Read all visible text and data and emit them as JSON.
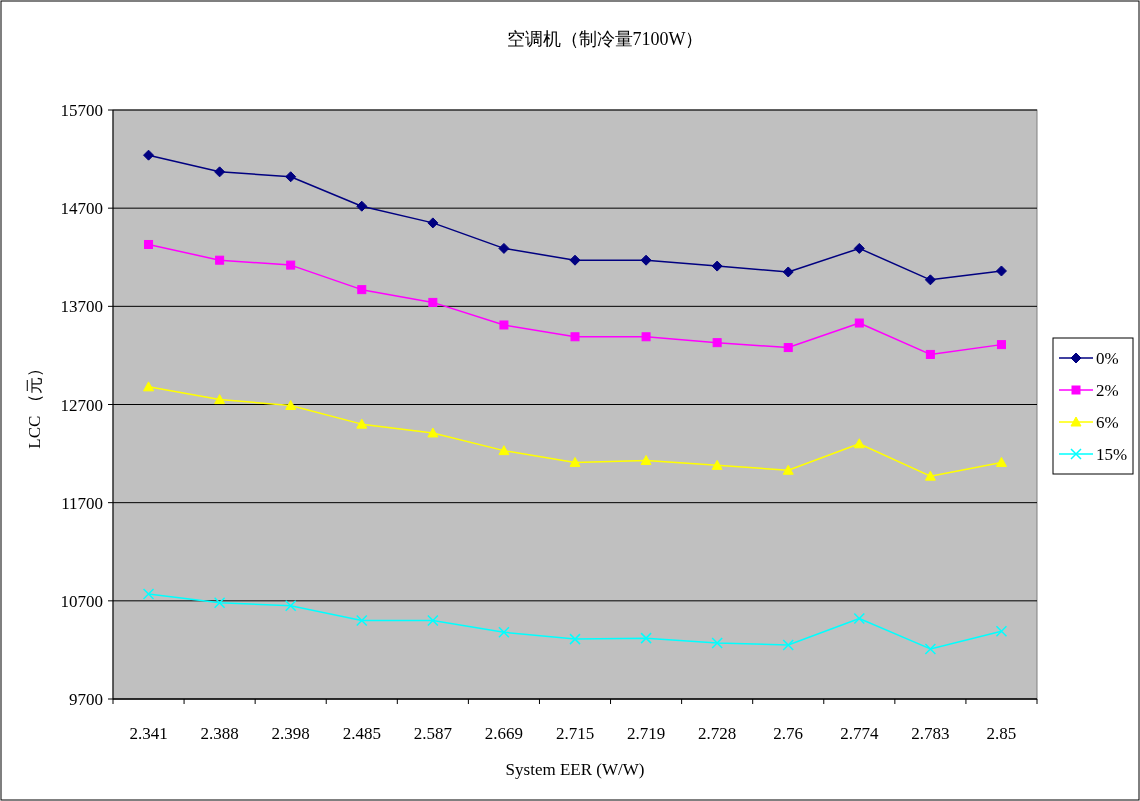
{
  "chart_data": {
    "type": "line",
    "title": "空调机（制冷量7100W）",
    "xlabel": "System EER (W/W)",
    "ylabel": "LCC （元）",
    "categories": [
      "2.341",
      "2.388",
      "2.398",
      "2.485",
      "2.587",
      "2.669",
      "2.715",
      "2.719",
      "2.728",
      "2.76",
      "2.774",
      "2.783",
      "2.85"
    ],
    "series": [
      {
        "name": "0%",
        "color": "#000080",
        "marker": "diamond",
        "values": [
          15240,
          15070,
          15020,
          14720,
          14550,
          14290,
          14170,
          14170,
          14110,
          14050,
          14290,
          13970,
          14060
        ]
      },
      {
        "name": "2%",
        "color": "#ff00ff",
        "marker": "square",
        "values": [
          14330,
          14170,
          14120,
          13870,
          13740,
          13510,
          13390,
          13390,
          13330,
          13280,
          13530,
          13210,
          13310
        ]
      },
      {
        "name": "6%",
        "color": "#ffff00",
        "marker": "triangle",
        "values": [
          12880,
          12750,
          12690,
          12500,
          12410,
          12230,
          12110,
          12130,
          12080,
          12030,
          12300,
          11970,
          12110
        ]
      },
      {
        "name": "15%",
        "color": "#00ffff",
        "marker": "cross",
        "values": [
          10770,
          10680,
          10650,
          10500,
          10500,
          10380,
          10310,
          10320,
          10270,
          10250,
          10520,
          10210,
          10390
        ]
      }
    ],
    "ylim": [
      9700,
      15700
    ],
    "yticks": [
      9700,
      10700,
      11700,
      12700,
      13700,
      14700,
      15700
    ],
    "grid": "y",
    "legend": "right"
  }
}
